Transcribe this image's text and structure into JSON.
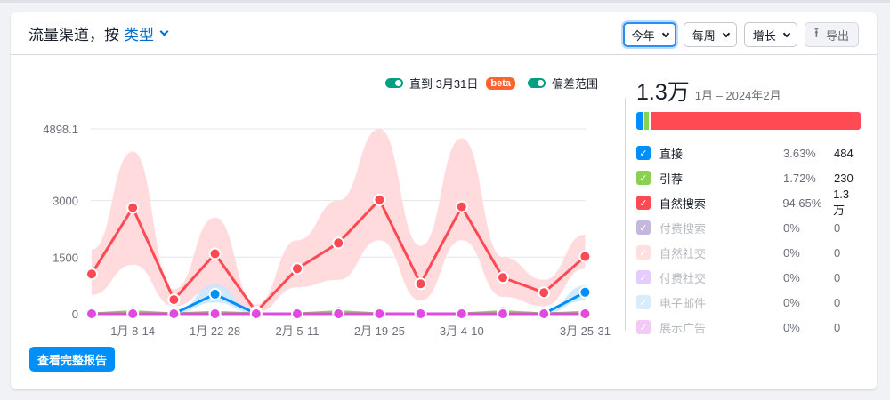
{
  "header": {
    "title_prefix": "流量渠道，按",
    "type_link": "类型",
    "controls": {
      "period": "今年",
      "granularity": "每周",
      "metric": "增长",
      "export": "导出"
    }
  },
  "toggles": {
    "until": "直到 3月31日",
    "beta": "beta",
    "deviation": "偏差范围"
  },
  "summary": {
    "total": "1.3万",
    "range": "1月 – 2024年2月",
    "rows": [
      {
        "name": "直接",
        "pct": "3.63%",
        "val": "484",
        "color": "#008ff8",
        "active": true
      },
      {
        "name": "引荐",
        "pct": "1.72%",
        "val": "230",
        "color": "#8bd151",
        "active": true
      },
      {
        "name": "自然搜索",
        "pct": "94.65%",
        "val": "1.3万",
        "color": "#ff4953",
        "active": true
      },
      {
        "name": "付费搜索",
        "pct": "0%",
        "val": "0",
        "color": "#c4b8de",
        "active": false
      },
      {
        "name": "自然社交",
        "pct": "0%",
        "val": "0",
        "color": "#ffe0e1",
        "active": false
      },
      {
        "name": "付费社交",
        "pct": "0%",
        "val": "0",
        "color": "#e4cdfc",
        "active": false
      },
      {
        "name": "电子邮件",
        "pct": "0%",
        "val": "0",
        "color": "#d8ecfd",
        "active": false
      },
      {
        "name": "展示广告",
        "pct": "0%",
        "val": "0",
        "color": "#f5c9f5",
        "active": false
      }
    ]
  },
  "footer": {
    "report_button": "查看完整报告"
  },
  "chart_data": {
    "type": "line",
    "title": "流量渠道，按 类型",
    "xlabel": "",
    "ylabel": "",
    "ylim": [
      0,
      4898.1
    ],
    "y_ticks": [
      "0",
      "1500",
      "3000",
      "4898.1"
    ],
    "x_tick_labels": [
      "1月 8-14",
      "1月 22-28",
      "2月 5-11",
      "2月 19-25",
      "3月 4-10",
      "3月 25-31"
    ],
    "categories": [
      "1月 1-7",
      "1月 8-14",
      "1月 15-21",
      "1月 22-28",
      "1月 29-2月 4",
      "2月 5-11",
      "2月 12-18",
      "2月 19-25",
      "2月 26-3月 3",
      "3月 4-10",
      "3月 11-17",
      "3月 18-24",
      "3月 25-31"
    ],
    "series": [
      {
        "name": "自然搜索",
        "color": "#ff4953",
        "values": [
          1055,
          2810,
          375,
          1590,
          50,
          1195,
          1875,
          3020,
          795,
          2835,
          960,
          560,
          1520
        ],
        "band_upper": [
          1700,
          4300,
          650,
          2550,
          250,
          1950,
          3000,
          4898,
          1800,
          4650,
          1500,
          900,
          2100
        ],
        "band_lower": [
          500,
          1300,
          200,
          700,
          30,
          700,
          900,
          1950,
          350,
          1950,
          450,
          200,
          1200
        ]
      },
      {
        "name": "直接",
        "color": "#008ff8",
        "values": [
          0,
          0,
          0,
          520,
          0,
          0,
          0,
          0,
          0,
          0,
          0,
          0,
          570
        ],
        "band_upper": [
          0,
          0,
          0,
          780,
          0,
          0,
          0,
          0,
          0,
          0,
          0,
          0,
          750
        ],
        "band_lower": [
          0,
          0,
          0,
          300,
          0,
          0,
          0,
          0,
          0,
          0,
          0,
          0,
          350
        ]
      },
      {
        "name": "引荐",
        "color": "#8bd151",
        "values": [
          0,
          60,
          0,
          40,
          0,
          0,
          60,
          0,
          0,
          0,
          60,
          0,
          40
        ]
      },
      {
        "name": "展示广告",
        "color": "#e04ae0",
        "values": [
          0,
          0,
          0,
          0,
          0,
          0,
          0,
          0,
          0,
          0,
          0,
          0,
          0
        ]
      }
    ],
    "deviation_band": true,
    "grid": true,
    "legend_position": "right"
  }
}
